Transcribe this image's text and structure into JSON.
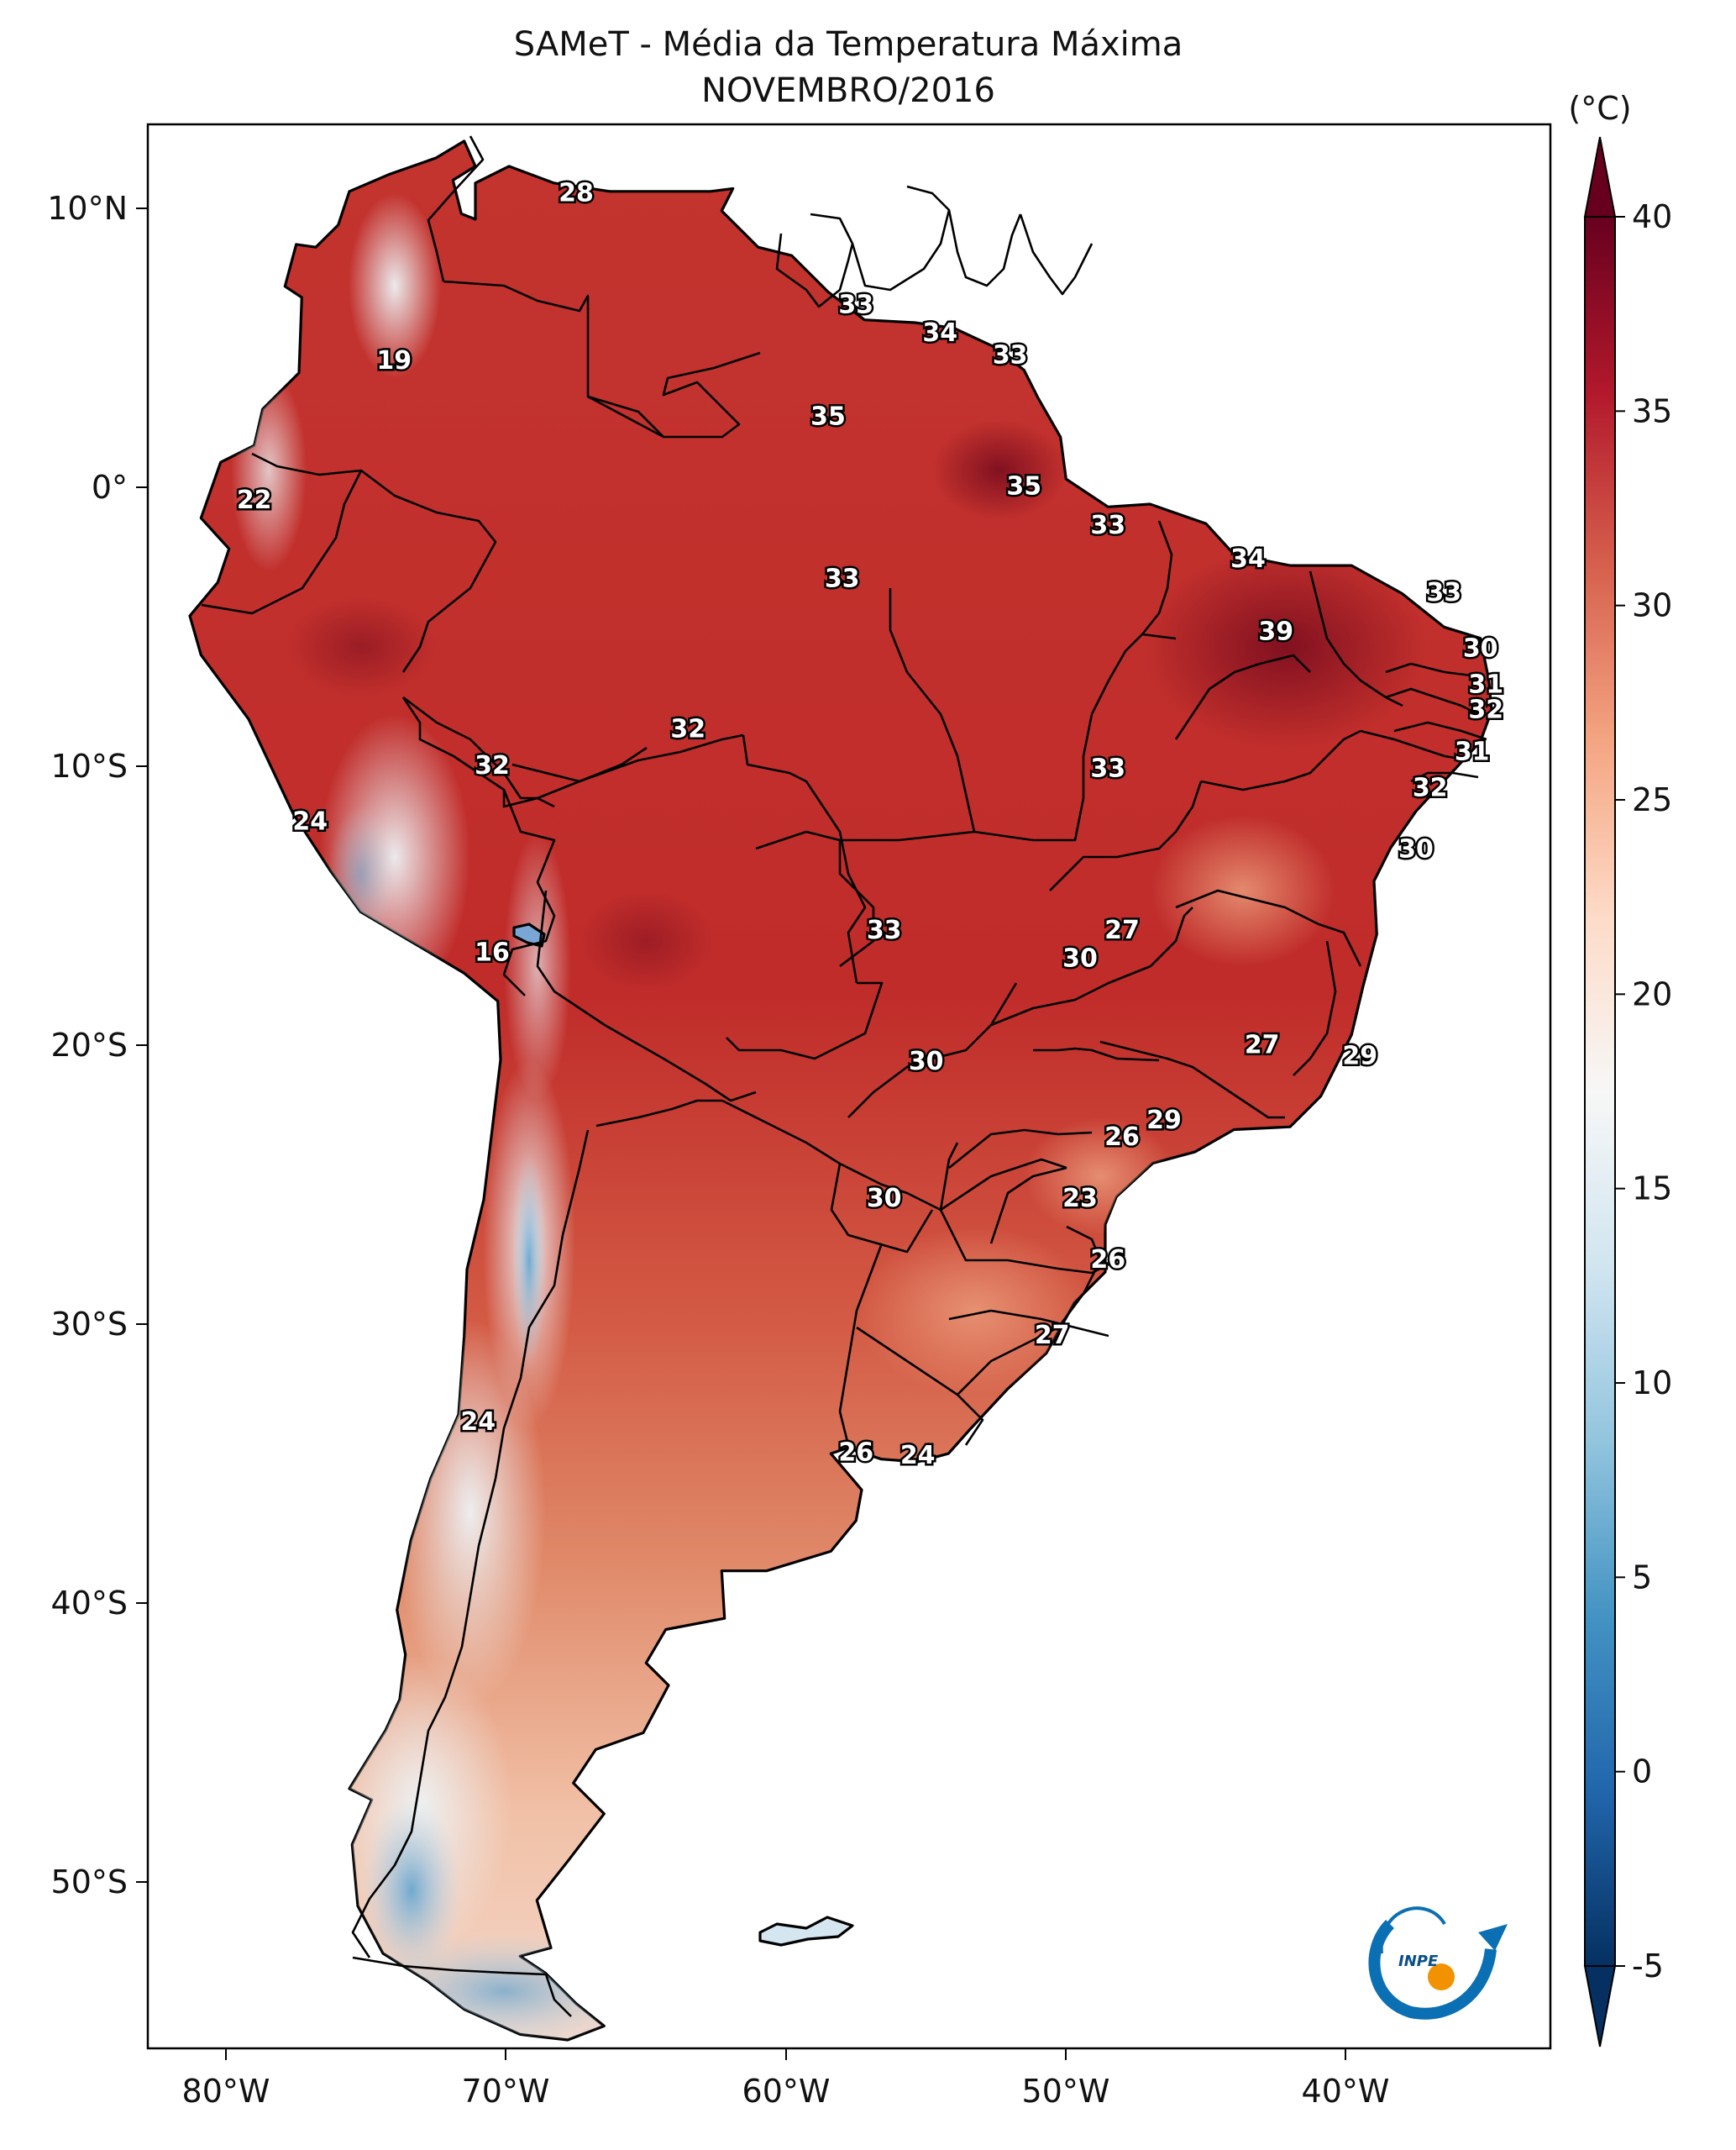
{
  "title": "SAMeT - Média da Temperatura Máxima",
  "subtitle": "NOVEMBRO/2016",
  "colorbar": {
    "unit": "(°C)",
    "range": [
      -5,
      40
    ],
    "ticks": [
      "-5",
      "0",
      "5",
      "10",
      "15",
      "20",
      "25",
      "30",
      "35",
      "40"
    ],
    "colors": [
      "#053061",
      "#2166ac",
      "#4393c3",
      "#92c5de",
      "#d1e5f0",
      "#f7f7f7",
      "#fddbc7",
      "#f4a582",
      "#d6604d",
      "#b2182b",
      "#67001f"
    ]
  },
  "axes": {
    "lon_labels": [
      "80°W",
      "70°W",
      "60°W",
      "50°W",
      "40°W"
    ],
    "lat_labels": [
      "10°N",
      "0°",
      "10°S",
      "20°S",
      "30°S",
      "40°S",
      "50°S"
    ]
  },
  "logo": {
    "text": "INPE"
  },
  "chart_data": {
    "type": "heatmap",
    "title": "SAMeT - Média da Temperatura Máxima",
    "subtitle": "NOVEMBRO/2016",
    "units": "°C",
    "vmin": -5,
    "vmax": 40,
    "lon_range": [
      -83,
      -33
    ],
    "lat_range": [
      -56,
      13
    ],
    "annotations": [
      {
        "lon": -67.5,
        "lat": 10.5,
        "value": 28
      },
      {
        "lon": -74,
        "lat": 4.5,
        "value": 19
      },
      {
        "lon": -79,
        "lat": -0.5,
        "value": 22
      },
      {
        "lon": -57.5,
        "lat": 6.5,
        "value": 33
      },
      {
        "lon": -54.5,
        "lat": 5.5,
        "value": 34
      },
      {
        "lon": -52,
        "lat": 4.7,
        "value": 33
      },
      {
        "lon": -58.5,
        "lat": 2.5,
        "value": 35
      },
      {
        "lon": -51.5,
        "lat": 0,
        "value": 35
      },
      {
        "lon": -48.5,
        "lat": -1.4,
        "value": 33
      },
      {
        "lon": -43.5,
        "lat": -2.6,
        "value": 34
      },
      {
        "lon": -36.5,
        "lat": -3.8,
        "value": 33
      },
      {
        "lon": -58,
        "lat": -3.3,
        "value": 33
      },
      {
        "lon": -42.5,
        "lat": -5.2,
        "value": 39
      },
      {
        "lon": -35.2,
        "lat": -5.8,
        "value": 30
      },
      {
        "lon": -35,
        "lat": -7.1,
        "value": 31
      },
      {
        "lon": -35,
        "lat": -8,
        "value": 32
      },
      {
        "lon": -35.5,
        "lat": -9.5,
        "value": 31
      },
      {
        "lon": -37,
        "lat": -10.8,
        "value": 32
      },
      {
        "lon": -63.5,
        "lat": -8.7,
        "value": 32
      },
      {
        "lon": -70.5,
        "lat": -10,
        "value": 32
      },
      {
        "lon": -48.5,
        "lat": -10.1,
        "value": 33
      },
      {
        "lon": -77,
        "lat": -12,
        "value": 24
      },
      {
        "lon": -37.5,
        "lat": -13,
        "value": 30
      },
      {
        "lon": -70.5,
        "lat": -16.7,
        "value": 16
      },
      {
        "lon": -56.5,
        "lat": -15.9,
        "value": 33
      },
      {
        "lon": -48,
        "lat": -15.9,
        "value": 27
      },
      {
        "lon": -49.5,
        "lat": -16.9,
        "value": 30
      },
      {
        "lon": -43,
        "lat": -20,
        "value": 27
      },
      {
        "lon": -39.5,
        "lat": -20.4,
        "value": 29
      },
      {
        "lon": -55,
        "lat": -20.6,
        "value": 30
      },
      {
        "lon": -46.5,
        "lat": -22.7,
        "value": 29
      },
      {
        "lon": -48,
        "lat": -23.3,
        "value": 26
      },
      {
        "lon": -49.5,
        "lat": -25.5,
        "value": 23
      },
      {
        "lon": -56.5,
        "lat": -25.5,
        "value": 30
      },
      {
        "lon": -48.5,
        "lat": -27.7,
        "value": 26
      },
      {
        "lon": -50.5,
        "lat": -30.4,
        "value": 27
      },
      {
        "lon": -71,
        "lat": -33.5,
        "value": 24
      },
      {
        "lon": -57.5,
        "lat": -34.6,
        "value": 26
      },
      {
        "lon": -55.3,
        "lat": -34.7,
        "value": 24
      }
    ]
  }
}
